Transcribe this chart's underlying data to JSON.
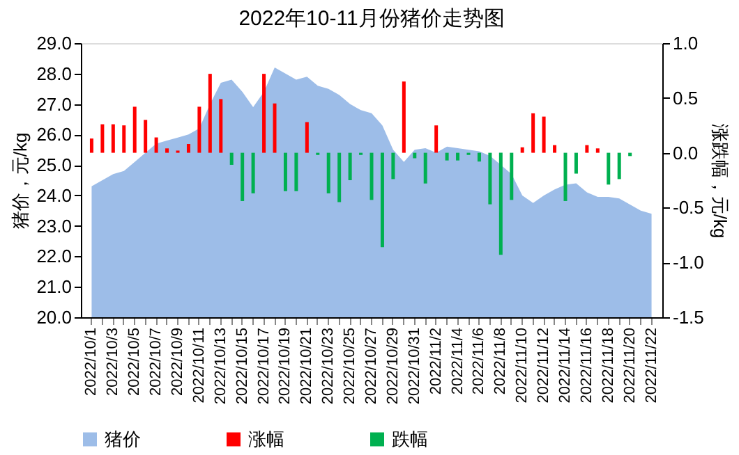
{
  "chart_data": {
    "type": "area",
    "title": "2022年10-11月份猪价走势图",
    "ylabel": "猪价，元/kg",
    "y2label": "涨跌幅，元/kg",
    "categories": [
      "2022/10/1",
      null,
      "2022/10/3",
      null,
      "2022/10/5",
      null,
      "2022/10/7",
      null,
      "2022/10/9",
      null,
      "2022/10/11",
      null,
      "2022/10/13",
      null,
      "2022/10/15",
      null,
      "2022/10/17",
      null,
      "2022/10/19",
      null,
      "2022/10/21",
      null,
      "2022/10/23",
      null,
      "2022/10/25",
      null,
      "2022/10/27",
      null,
      "2022/10/29",
      null,
      "2022/10/31",
      null,
      "2022/11/2",
      null,
      "2022/11/4",
      null,
      "2022/11/6",
      null,
      "2022/11/8",
      null,
      "2022/11/10",
      null,
      "2022/11/12",
      null,
      "2022/11/14",
      null,
      "2022/11/16",
      null,
      "2022/11/18",
      null,
      "2022/11/20",
      null,
      "2022/11/22"
    ],
    "series": [
      {
        "name": "猪价",
        "color": "#9dbde8",
        "values": [
          24.3,
          24.5,
          24.7,
          24.8,
          25.1,
          25.4,
          25.7,
          25.8,
          25.9,
          26.0,
          26.2,
          27.0,
          27.7,
          27.8,
          27.4,
          26.9,
          27.4,
          28.2,
          28.0,
          27.8,
          27.9,
          27.6,
          27.5,
          27.3,
          27.0,
          26.8,
          26.7,
          26.3,
          25.5,
          25.1,
          25.5,
          25.55,
          25.4,
          25.6,
          25.55,
          25.5,
          25.45,
          25.3,
          25.0,
          24.7,
          24.0,
          23.75,
          24.0,
          24.2,
          24.35,
          24.4,
          24.1,
          23.95,
          23.95,
          23.9,
          23.7,
          23.5,
          23.4
        ]
      },
      {
        "name": "涨幅",
        "type": "bar",
        "axis": "y2",
        "color": "#ff0000",
        "values": [
          0.13,
          0.26,
          0.26,
          0.25,
          0.42,
          0.3,
          0.14,
          0.04,
          0.02,
          0.08,
          0.42,
          0.72,
          0.49,
          null,
          null,
          null,
          0.72,
          0.45,
          null,
          null,
          0.28,
          null,
          null,
          null,
          null,
          null,
          null,
          null,
          null,
          0.65,
          null,
          null,
          0.25,
          null,
          null,
          null,
          null,
          null,
          null,
          null,
          0.05,
          0.36,
          0.33,
          0.07,
          null,
          null,
          0.07,
          0.04,
          null,
          null,
          null,
          null,
          null
        ]
      },
      {
        "name": "跌幅",
        "type": "bar",
        "axis": "y2",
        "color": "#00b050",
        "values": [
          null,
          null,
          null,
          null,
          null,
          null,
          null,
          null,
          null,
          null,
          null,
          null,
          null,
          -0.11,
          -0.44,
          -0.37,
          null,
          null,
          -0.35,
          -0.35,
          null,
          -0.02,
          -0.37,
          -0.45,
          -0.25,
          -0.02,
          -0.43,
          -0.86,
          -0.24,
          null,
          -0.05,
          -0.28,
          null,
          -0.07,
          -0.07,
          -0.02,
          -0.08,
          -0.47,
          -0.93,
          -0.43,
          null,
          null,
          null,
          null,
          -0.44,
          -0.19,
          null,
          null,
          -0.29,
          -0.24,
          -0.03,
          null,
          null
        ]
      }
    ],
    "ylim": [
      20,
      29
    ],
    "yticks": [
      {
        "value": 20,
        "label": "20.0"
      },
      {
        "value": 21,
        "label": "21.0"
      },
      {
        "value": 22,
        "label": "22.0"
      },
      {
        "value": 23,
        "label": "23.0"
      },
      {
        "value": 24,
        "label": "24.0"
      },
      {
        "value": 25,
        "label": "25.0"
      },
      {
        "value": 26,
        "label": "26.0"
      },
      {
        "value": 27,
        "label": "27.0"
      },
      {
        "value": 28,
        "label": "28.0"
      },
      {
        "value": 29,
        "label": "29.0"
      }
    ],
    "y2lim": [
      -1.5,
      1
    ],
    "y2ticks": [
      {
        "value": -1.5,
        "label": "-1.5"
      },
      {
        "value": -1,
        "label": "-1.0"
      },
      {
        "value": -0.5,
        "label": "-0.5"
      },
      {
        "value": 0,
        "label": "0.0"
      },
      {
        "value": 0.5,
        "label": "0.5"
      },
      {
        "value": 1,
        "label": "1.0"
      }
    ],
    "grid": false,
    "legend": "bottom"
  }
}
